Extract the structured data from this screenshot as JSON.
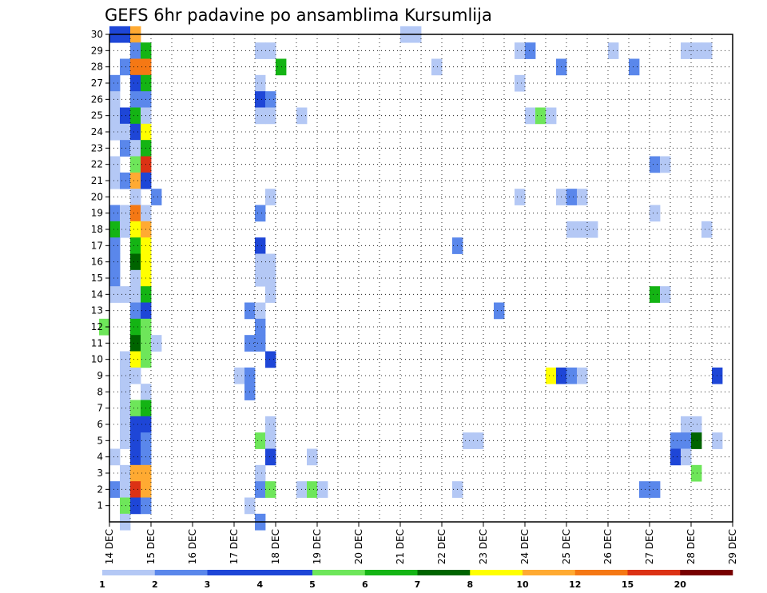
{
  "chart_data": {
    "type": "heatmap",
    "title": "GEFS 6hr padavine po ansamblima Kursumlija",
    "x_tick_labels": [
      "14 DEC",
      "15 DEC",
      "16 DEC",
      "17 DEC",
      "18 DEC",
      "19 DEC",
      "20 DEC",
      "21 DEC",
      "22 DEC",
      "23 DEC",
      "24 DEC",
      "25 DEC",
      "26 DEC",
      "27 DEC",
      "28 DEC",
      "29 DEC"
    ],
    "y_tick_labels": [
      "1",
      "2",
      "3",
      "4",
      "5",
      "6",
      "7",
      "8",
      "9",
      "10",
      "11",
      "12",
      "13",
      "14",
      "15",
      "16",
      "17",
      "18",
      "19",
      "20",
      "21",
      "22",
      "23",
      "24",
      "25",
      "26",
      "27",
      "28",
      "29",
      "30"
    ],
    "xlim": [
      "14 DEC",
      "29 DEC"
    ],
    "ylim": [
      0,
      30
    ],
    "time_step_hours": 6,
    "grid": "dotted",
    "colorbar": {
      "position": "bottom",
      "levels": [
        1,
        2,
        3,
        4,
        5,
        6,
        7,
        8,
        10,
        12,
        15,
        20
      ],
      "labels": [
        "1",
        "2",
        "3",
        "4",
        "5",
        "6",
        "7",
        "8",
        "10",
        "12",
        "15",
        "20"
      ],
      "colors": [
        "#b4c8f5",
        "#5a87eb",
        "#1e46d7",
        "#1e46d7",
        "#6ee65a",
        "#14b414",
        "#006400",
        "#ffff00",
        "#ffaa32",
        "#f57814",
        "#dc3214",
        "#780000"
      ]
    },
    "palette": {
      "lb": "#b4c8f5",
      "mb": "#5a87eb",
      "db": "#1e46d7",
      "lg": "#6ee65a",
      "mg": "#14b414",
      "dg": "#006400",
      "ye": "#ffff00",
      "lo": "#ffaa32",
      "or": "#f57814",
      "re": "#dc3214"
    },
    "cells": [
      [
        "30",
        0,
        "db"
      ],
      [
        "30",
        1,
        "db"
      ],
      [
        "30",
        2,
        "lo"
      ],
      [
        "30",
        28,
        "lb"
      ],
      [
        "30",
        29,
        "lb"
      ],
      [
        "29",
        2,
        "mb"
      ],
      [
        "29",
        3,
        "mg"
      ],
      [
        "29",
        14,
        "lb"
      ],
      [
        "29",
        15,
        "lb"
      ],
      [
        "29",
        39,
        "lb"
      ],
      [
        "29",
        40,
        "mb"
      ],
      [
        "29",
        48,
        "lb"
      ],
      [
        "29",
        55,
        "lb"
      ],
      [
        "29",
        56,
        "lb"
      ],
      [
        "29",
        57,
        "lb"
      ],
      [
        "28",
        1,
        "mb"
      ],
      [
        "28",
        2,
        "or"
      ],
      [
        "28",
        3,
        "or"
      ],
      [
        "28",
        16,
        "mg"
      ],
      [
        "28",
        31,
        "lb"
      ],
      [
        "28",
        43,
        "mb"
      ],
      [
        "28",
        50,
        "mb"
      ],
      [
        "27",
        0,
        "mb"
      ],
      [
        "27",
        2,
        "db"
      ],
      [
        "27",
        3,
        "mg"
      ],
      [
        "27",
        14,
        "lb"
      ],
      [
        "27",
        39,
        "lb"
      ],
      [
        "26",
        0,
        "lb"
      ],
      [
        "26",
        2,
        "mb"
      ],
      [
        "26",
        3,
        "mb"
      ],
      [
        "26",
        14,
        "db"
      ],
      [
        "26",
        15,
        "mb"
      ],
      [
        "25",
        0,
        "lb"
      ],
      [
        "25",
        1,
        "db"
      ],
      [
        "25",
        2,
        "mg"
      ],
      [
        "25",
        3,
        "lb"
      ],
      [
        "25",
        14,
        "lb"
      ],
      [
        "25",
        15,
        "lb"
      ],
      [
        "25",
        18,
        "lb"
      ],
      [
        "25",
        40,
        "lb"
      ],
      [
        "25",
        41,
        "lg"
      ],
      [
        "25",
        42,
        "lb"
      ],
      [
        "24",
        0,
        "lb"
      ],
      [
        "24",
        1,
        "lb"
      ],
      [
        "24",
        2,
        "db"
      ],
      [
        "24",
        3,
        "ye"
      ],
      [
        "23",
        1,
        "mb"
      ],
      [
        "23",
        2,
        "lb"
      ],
      [
        "23",
        3,
        "mg"
      ],
      [
        "22",
        0,
        "lb"
      ],
      [
        "22",
        2,
        "lg"
      ],
      [
        "22",
        3,
        "re"
      ],
      [
        "22",
        52,
        "mb"
      ],
      [
        "22",
        53,
        "lb"
      ],
      [
        "21",
        0,
        "lb"
      ],
      [
        "21",
        1,
        "mb"
      ],
      [
        "21",
        2,
        "lo"
      ],
      [
        "21",
        3,
        "db"
      ],
      [
        "20",
        2,
        "lb"
      ],
      [
        "20",
        4,
        "mb"
      ],
      [
        "20",
        15,
        "lb"
      ],
      [
        "20",
        39,
        "lb"
      ],
      [
        "20",
        43,
        "lb"
      ],
      [
        "20",
        44,
        "mb"
      ],
      [
        "20",
        45,
        "lb"
      ],
      [
        "19",
        0,
        "mb"
      ],
      [
        "19",
        1,
        "lb"
      ],
      [
        "19",
        2,
        "or"
      ],
      [
        "19",
        3,
        "lb"
      ],
      [
        "19",
        14,
        "mb"
      ],
      [
        "19",
        52,
        "lb"
      ],
      [
        "18",
        0,
        "mg"
      ],
      [
        "18",
        1,
        "lb"
      ],
      [
        "18",
        2,
        "ye"
      ],
      [
        "18",
        3,
        "lo"
      ],
      [
        "18",
        44,
        "lb"
      ],
      [
        "18",
        45,
        "lb"
      ],
      [
        "18",
        46,
        "lb"
      ],
      [
        "18",
        57,
        "lb"
      ],
      [
        "17",
        0,
        "mb"
      ],
      [
        "17",
        2,
        "mg"
      ],
      [
        "17",
        3,
        "ye"
      ],
      [
        "17",
        14,
        "db"
      ],
      [
        "17",
        33,
        "mb"
      ],
      [
        "16",
        0,
        "mb"
      ],
      [
        "16",
        2,
        "dg"
      ],
      [
        "16",
        3,
        "ye"
      ],
      [
        "16",
        14,
        "lb"
      ],
      [
        "16",
        15,
        "lb"
      ],
      [
        "15",
        0,
        "mb"
      ],
      [
        "15",
        2,
        "lb"
      ],
      [
        "15",
        3,
        "ye"
      ],
      [
        "15",
        14,
        "lb"
      ],
      [
        "15",
        15,
        "lb"
      ],
      [
        "14",
        0,
        "lb"
      ],
      [
        "14",
        1,
        "lb"
      ],
      [
        "14",
        2,
        "lb"
      ],
      [
        "14",
        3,
        "mg"
      ],
      [
        "14",
        15,
        "lb"
      ],
      [
        "14",
        52,
        "mg"
      ],
      [
        "14",
        53,
        "lb"
      ],
      [
        "13",
        2,
        "mb"
      ],
      [
        "13",
        3,
        "db"
      ],
      [
        "13",
        13,
        "mb"
      ],
      [
        "13",
        14,
        "lb"
      ],
      [
        "13",
        37,
        "mb"
      ],
      [
        "12",
        -1,
        "lg"
      ],
      [
        "12",
        2,
        "mg"
      ],
      [
        "12",
        3,
        "lg"
      ],
      [
        "12",
        14,
        "mb"
      ],
      [
        "11",
        2,
        "dg"
      ],
      [
        "11",
        3,
        "lg"
      ],
      [
        "11",
        4,
        "lb"
      ],
      [
        "11",
        13,
        "mb"
      ],
      [
        "11",
        14,
        "mb"
      ],
      [
        "10",
        1,
        "lb"
      ],
      [
        "10",
        2,
        "ye"
      ],
      [
        "10",
        3,
        "lg"
      ],
      [
        "10",
        15,
        "db"
      ],
      [
        "9",
        1,
        "lb"
      ],
      [
        "9",
        2,
        "lb"
      ],
      [
        "9",
        12,
        "lb"
      ],
      [
        "9",
        13,
        "mb"
      ],
      [
        "9",
        42,
        "ye"
      ],
      [
        "9",
        43,
        "db"
      ],
      [
        "9",
        44,
        "mb"
      ],
      [
        "9",
        45,
        "lb"
      ],
      [
        "9",
        58,
        "db"
      ],
      [
        "8",
        1,
        "lb"
      ],
      [
        "8",
        3,
        "lb"
      ],
      [
        "8",
        13,
        "mb"
      ],
      [
        "7",
        1,
        "lb"
      ],
      [
        "7",
        2,
        "lg"
      ],
      [
        "7",
        3,
        "mg"
      ],
      [
        "6",
        1,
        "lb"
      ],
      [
        "6",
        2,
        "db"
      ],
      [
        "6",
        3,
        "db"
      ],
      [
        "6",
        15,
        "lb"
      ],
      [
        "6",
        55,
        "lb"
      ],
      [
        "6",
        56,
        "lb"
      ],
      [
        "5",
        1,
        "lb"
      ],
      [
        "5",
        2,
        "db"
      ],
      [
        "5",
        3,
        "mb"
      ],
      [
        "5",
        14,
        "lg"
      ],
      [
        "5",
        15,
        "lb"
      ],
      [
        "5",
        34,
        "lb"
      ],
      [
        "5",
        35,
        "lb"
      ],
      [
        "5",
        54,
        "mb"
      ],
      [
        "5",
        55,
        "mb"
      ],
      [
        "5",
        56,
        "dg"
      ],
      [
        "5",
        58,
        "lb"
      ],
      [
        "4",
        0,
        "lb"
      ],
      [
        "4",
        2,
        "db"
      ],
      [
        "4",
        3,
        "mb"
      ],
      [
        "4",
        15,
        "db"
      ],
      [
        "4",
        19,
        "lb"
      ],
      [
        "4",
        54,
        "db"
      ],
      [
        "4",
        55,
        "lb"
      ],
      [
        "3",
        1,
        "lb"
      ],
      [
        "3",
        2,
        "lo"
      ],
      [
        "3",
        3,
        "lo"
      ],
      [
        "3",
        14,
        "lb"
      ],
      [
        "3",
        56,
        "lg"
      ],
      [
        "2",
        0,
        "mb"
      ],
      [
        "2",
        1,
        "lb"
      ],
      [
        "2",
        2,
        "re"
      ],
      [
        "2",
        3,
        "lo"
      ],
      [
        "2",
        14,
        "mb"
      ],
      [
        "2",
        15,
        "lg"
      ],
      [
        "2",
        18,
        "lb"
      ],
      [
        "2",
        19,
        "lg"
      ],
      [
        "2",
        20,
        "lb"
      ],
      [
        "2",
        33,
        "lb"
      ],
      [
        "2",
        51,
        "mb"
      ],
      [
        "2",
        52,
        "mb"
      ],
      [
        "1",
        1,
        "lg"
      ],
      [
        "1",
        2,
        "db"
      ],
      [
        "1",
        3,
        "mb"
      ],
      [
        "1",
        13,
        "lb"
      ],
      [
        "0",
        1,
        "lb"
      ],
      [
        "0",
        14,
        "mb"
      ]
    ]
  }
}
